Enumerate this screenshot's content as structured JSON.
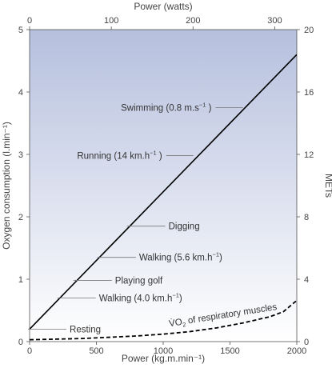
{
  "chart_data": {
    "type": "line",
    "x_bottom": {
      "label": "Power (kg.m.min⁻¹)",
      "range": [
        0,
        2000
      ],
      "ticks": [
        0,
        500,
        1000,
        1500,
        2000
      ]
    },
    "x_top": {
      "label": "Power (watts)",
      "range": [
        0,
        327
      ],
      "ticks": [
        0,
        100,
        200,
        300
      ]
    },
    "y_left": {
      "label": "Oxygen consumption (l.min⁻¹)",
      "range": [
        0,
        5
      ],
      "ticks": [
        0,
        1,
        2,
        3,
        4,
        5
      ]
    },
    "y_right": {
      "label": "METs",
      "range": [
        0,
        20
      ],
      "ticks": [
        0,
        4,
        8,
        12,
        16,
        20
      ]
    },
    "series": [
      {
        "style": "solid",
        "color": "#000000",
        "x": [
          0,
          2000
        ],
        "y": [
          0.2,
          4.6
        ]
      },
      {
        "name": "V̇O2 of respiratory muscles",
        "style": "dashed",
        "color": "#000000",
        "x": [
          0,
          200,
          400,
          600,
          800,
          1000,
          1200,
          1400,
          1600,
          1800,
          1900,
          2000
        ],
        "y": [
          0.03,
          0.04,
          0.05,
          0.07,
          0.09,
          0.12,
          0.16,
          0.22,
          0.3,
          0.4,
          0.48,
          0.66
        ]
      }
    ],
    "annotations": [
      {
        "text": "Resting",
        "x": 60,
        "y": 0.2
      },
      {
        "text": "Walking (4.0 km.h",
        "sup": "−1",
        "tail": ")",
        "x": 280,
        "y": 0.7
      },
      {
        "text": "Playing golf",
        "x": 400,
        "y": 0.98
      },
      {
        "text": "Walking (5.6 km.h",
        "sup": "−1",
        "tail": ")",
        "x": 580,
        "y": 1.35
      },
      {
        "text": "Digging",
        "x": 800,
        "y": 1.85
      },
      {
        "text": "Running (14 km.h",
        "sup": "−1",
        "tail": " )",
        "x": 1190,
        "y": 2.98
      },
      {
        "text": "Swimming (0.8 m.s",
        "sup": "−1",
        "tail": " )",
        "x": 1560,
        "y": 3.75
      }
    ],
    "grid": false,
    "background": {
      "top_color": "#b6c0de",
      "bottom_color": "#ffffff"
    }
  }
}
